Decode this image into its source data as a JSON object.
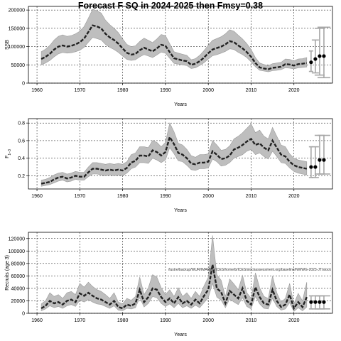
{
  "title": "Forecast F SQ in 2024-2025 then Fmsy=0.38",
  "colors": {
    "band": "#bebebe",
    "band_edge": "#9a9a9a",
    "line": "#222222",
    "forecast_bar": "#a6a6a6",
    "point": "#000000",
    "grid": "#000000"
  },
  "chart_data": [
    {
      "type": "line",
      "panel": "ssb",
      "ylabel": "SSB",
      "xlabel": "Years",
      "xlim": [
        1958,
        2029
      ],
      "ylim": [
        0,
        210000
      ],
      "xticks": [
        1960,
        1970,
        1980,
        1990,
        2000,
        2010,
        2020
      ],
      "yticks": [
        0,
        50000,
        100000,
        150000,
        200000
      ],
      "grid": true,
      "x": [
        1961,
        1962,
        1963,
        1964,
        1965,
        1966,
        1967,
        1968,
        1969,
        1970,
        1971,
        1972,
        1973,
        1974,
        1975,
        1976,
        1977,
        1978,
        1979,
        1980,
        1981,
        1982,
        1983,
        1984,
        1985,
        1986,
        1987,
        1988,
        1989,
        1990,
        1991,
        1992,
        1993,
        1994,
        1995,
        1996,
        1997,
        1998,
        1999,
        2000,
        2001,
        2002,
        2003,
        2004,
        2005,
        2006,
        2007,
        2008,
        2009,
        2010,
        2011,
        2012,
        2013,
        2014,
        2015,
        2016,
        2017,
        2018,
        2019,
        2020,
        2021,
        2022,
        2023
      ],
      "series": [
        {
          "values": [
            66000,
            72000,
            80000,
            92000,
            100000,
            103000,
            100000,
            102000,
            106000,
            112000,
            122000,
            140000,
            158000,
            155000,
            150000,
            135000,
            125000,
            118000,
            108000,
            95000,
            83000,
            78000,
            80000,
            90000,
            97000,
            92000,
            87000,
            95000,
            105000,
            102000,
            85000,
            68000,
            65000,
            62000,
            60000,
            50000,
            53000,
            60000,
            70000,
            82000,
            92000,
            96000,
            100000,
            106000,
            115000,
            112000,
            103000,
            95000,
            85000,
            72000,
            55000,
            43000,
            40000,
            38000,
            42000,
            43000,
            45000,
            52000,
            51000,
            48000,
            52000,
            53000,
            55000
          ],
          "lower": [
            50000,
            55000,
            62000,
            72000,
            80000,
            84000,
            82000,
            83000,
            86000,
            90000,
            98000,
            112000,
            125000,
            122000,
            118000,
            106000,
            98000,
            92000,
            84000,
            74000,
            65000,
            62000,
            64000,
            72000,
            78000,
            74000,
            70000,
            77000,
            85000,
            82000,
            68000,
            54000,
            52000,
            50000,
            48000,
            40000,
            42000,
            48000,
            56000,
            66000,
            75000,
            78000,
            82000,
            87000,
            94000,
            92000,
            84000,
            78000,
            70000,
            58000,
            45000,
            35000,
            33000,
            31000,
            34000,
            35000,
            37000,
            42000,
            41000,
            39000,
            42000,
            43000,
            44000
          ],
          "upper": [
            86000,
            93000,
            103000,
            118000,
            128000,
            132000,
            128000,
            130000,
            135000,
            142000,
            155000,
            178000,
            202000,
            198000,
            192000,
            172000,
            160000,
            150000,
            138000,
            121000,
            106000,
            100000,
            102000,
            114000,
            123000,
            117000,
            111000,
            121000,
            133000,
            130000,
            108000,
            86000,
            82000,
            79000,
            76000,
            64000,
            67000,
            76000,
            89000,
            104000,
            117000,
            122000,
            127000,
            135000,
            146000,
            142000,
            131000,
            121000,
            108000,
            92000,
            70000,
            55000,
            51000,
            48000,
            53000,
            55000,
            57000,
            66000,
            65000,
            61000,
            66000,
            67000,
            70000
          ]
        }
      ],
      "forecast": [
        {
          "year": 2024,
          "value": 57000,
          "lower": 32000,
          "upper": 88000
        },
        {
          "year": 2025,
          "value": 66000,
          "lower": 28000,
          "upper": 118000
        },
        {
          "year": 2026,
          "value": 74000,
          "lower": 22000,
          "upper": 150000
        },
        {
          "year": 2027,
          "value": 74000,
          "lower": 15000,
          "upper": 153000
        }
      ]
    },
    {
      "type": "line",
      "panel": "f",
      "ylabel": "F",
      "ylabel_subscript": "1−3",
      "xlabel": "Years",
      "xlim": [
        1958,
        2029
      ],
      "ylim": [
        0.05,
        0.85
      ],
      "xticks": [
        1960,
        1970,
        1980,
        1990,
        2000,
        2010,
        2020
      ],
      "yticks": [
        0.2,
        0.4,
        0.6,
        0.8
      ],
      "ytick_labels": [
        "0.2",
        "0.4",
        "0.6",
        "0.8"
      ],
      "grid": true,
      "x": [
        1961,
        1962,
        1963,
        1964,
        1965,
        1966,
        1967,
        1968,
        1969,
        1970,
        1971,
        1972,
        1973,
        1974,
        1975,
        1976,
        1977,
        1978,
        1979,
        1980,
        1981,
        1982,
        1983,
        1984,
        1985,
        1986,
        1987,
        1988,
        1989,
        1990,
        1991,
        1992,
        1993,
        1994,
        1995,
        1996,
        1997,
        1998,
        1999,
        2000,
        2001,
        2002,
        2003,
        2004,
        2005,
        2006,
        2007,
        2008,
        2009,
        2010,
        2011,
        2012,
        2013,
        2014,
        2015,
        2016,
        2017,
        2018,
        2019,
        2020,
        2021,
        2022,
        2023
      ],
      "series": [
        {
          "values": [
            0.11,
            0.12,
            0.13,
            0.16,
            0.18,
            0.19,
            0.17,
            0.18,
            0.2,
            0.19,
            0.19,
            0.24,
            0.28,
            0.28,
            0.27,
            0.26,
            0.27,
            0.26,
            0.27,
            0.26,
            0.29,
            0.35,
            0.37,
            0.43,
            0.43,
            0.42,
            0.49,
            0.47,
            0.43,
            0.47,
            0.64,
            0.56,
            0.46,
            0.44,
            0.4,
            0.34,
            0.33,
            0.35,
            0.35,
            0.36,
            0.48,
            0.44,
            0.39,
            0.4,
            0.43,
            0.5,
            0.52,
            0.55,
            0.59,
            0.62,
            0.55,
            0.57,
            0.52,
            0.49,
            0.6,
            0.52,
            0.44,
            0.42,
            0.36,
            0.32,
            0.3,
            0.29,
            0.28
          ],
          "lower": [
            0.08,
            0.09,
            0.1,
            0.12,
            0.14,
            0.15,
            0.13,
            0.14,
            0.16,
            0.15,
            0.15,
            0.19,
            0.22,
            0.22,
            0.21,
            0.2,
            0.21,
            0.2,
            0.21,
            0.2,
            0.23,
            0.28,
            0.3,
            0.35,
            0.35,
            0.34,
            0.4,
            0.38,
            0.35,
            0.38,
            0.52,
            0.45,
            0.37,
            0.36,
            0.32,
            0.27,
            0.26,
            0.28,
            0.28,
            0.29,
            0.39,
            0.36,
            0.31,
            0.32,
            0.35,
            0.4,
            0.42,
            0.44,
            0.48,
            0.5,
            0.44,
            0.46,
            0.42,
            0.39,
            0.48,
            0.42,
            0.35,
            0.34,
            0.29,
            0.25,
            0.23,
            0.22,
            0.21
          ],
          "upper": [
            0.15,
            0.16,
            0.18,
            0.21,
            0.23,
            0.24,
            0.22,
            0.23,
            0.25,
            0.24,
            0.24,
            0.3,
            0.35,
            0.35,
            0.34,
            0.33,
            0.34,
            0.33,
            0.34,
            0.33,
            0.36,
            0.44,
            0.46,
            0.53,
            0.53,
            0.52,
            0.6,
            0.58,
            0.53,
            0.58,
            0.8,
            0.7,
            0.57,
            0.55,
            0.5,
            0.43,
            0.41,
            0.44,
            0.44,
            0.45,
            0.6,
            0.55,
            0.49,
            0.5,
            0.54,
            0.62,
            0.65,
            0.69,
            0.74,
            0.79,
            0.69,
            0.72,
            0.65,
            0.62,
            0.75,
            0.65,
            0.55,
            0.53,
            0.45,
            0.4,
            0.38,
            0.37,
            0.36
          ]
        }
      ],
      "forecast": [
        {
          "year": 2024,
          "value": 0.3,
          "lower": 0.18,
          "upper": 0.53
        },
        {
          "year": 2025,
          "value": 0.3,
          "lower": 0.18,
          "upper": 0.53
        },
        {
          "year": 2026,
          "value": 0.38,
          "lower": 0.22,
          "upper": 0.66
        },
        {
          "year": 2027,
          "value": 0.38,
          "lower": 0.22,
          "upper": 0.66
        }
      ]
    },
    {
      "type": "line",
      "panel": "recruits",
      "ylabel": "Recruits (age 3)",
      "xlabel": "Years",
      "xlim": [
        1958,
        2029
      ],
      "ylim": [
        0,
        130000
      ],
      "xticks": [
        1960,
        1970,
        1980,
        1990,
        2000,
        2010,
        2020
      ],
      "yticks": [
        0,
        20000,
        40000,
        60000,
        80000,
        100000,
        120000
      ],
      "grid": true,
      "annotation": "/lustre/backup/WUR/IMARES/ICES/home/b/ICES/stockassessment.org/baseline/NWWG-2023-JT/stock",
      "x": [
        1961,
        1962,
        1963,
        1964,
        1965,
        1966,
        1967,
        1968,
        1969,
        1970,
        1971,
        1972,
        1973,
        1974,
        1975,
        1976,
        1977,
        1978,
        1979,
        1980,
        1981,
        1982,
        1983,
        1984,
        1985,
        1986,
        1987,
        1988,
        1989,
        1990,
        1991,
        1992,
        1993,
        1994,
        1995,
        1996,
        1997,
        1998,
        1999,
        2000,
        2001,
        2002,
        2003,
        2004,
        2005,
        2006,
        2007,
        2008,
        2009,
        2010,
        2011,
        2012,
        2013,
        2014,
        2015,
        2016,
        2017,
        2018,
        2019,
        2020,
        2021,
        2022,
        2023
      ],
      "series": [
        {
          "values": [
            8000,
            12000,
            20000,
            16000,
            18000,
            14000,
            20000,
            22000,
            18000,
            32000,
            28000,
            33000,
            28000,
            24000,
            22000,
            18000,
            14000,
            20000,
            10000,
            8000,
            14000,
            12000,
            16000,
            38000,
            18000,
            26000,
            40000,
            38000,
            26000,
            18000,
            24000,
            16000,
            26000,
            16000,
            20000,
            14000,
            22000,
            16000,
            28000,
            38000,
            78000,
            40000,
            34000,
            16000,
            36000,
            30000,
            24000,
            40000,
            20000,
            14000,
            42000,
            26000,
            16000,
            14000,
            38000,
            20000,
            10000,
            14000,
            30000,
            8000,
            18000,
            10000,
            26000
          ],
          "lower": [
            4000,
            7000,
            12000,
            9000,
            11000,
            8000,
            12000,
            14000,
            11000,
            21000,
            18000,
            22000,
            18000,
            15000,
            14000,
            11000,
            8000,
            12000,
            5000,
            4000,
            8000,
            7000,
            9000,
            25000,
            10000,
            16000,
            27000,
            25000,
            16000,
            11000,
            15000,
            9000,
            16000,
            9000,
            12000,
            8000,
            13000,
            9000,
            17000,
            25000,
            48000,
            26000,
            21000,
            9000,
            23000,
            18000,
            14000,
            25000,
            11000,
            7000,
            27000,
            15000,
            8000,
            7000,
            24000,
            11000,
            5000,
            7000,
            17000,
            3000,
            9000,
            4000,
            10000
          ],
          "upper": [
            15000,
            20000,
            33000,
            27000,
            30000,
            24000,
            33000,
            35000,
            30000,
            48000,
            42000,
            50000,
            43000,
            38000,
            35000,
            30000,
            24000,
            33000,
            18000,
            15000,
            24000,
            21000,
            27000,
            58000,
            30000,
            41000,
            62000,
            58000,
            41000,
            30000,
            38000,
            27000,
            41000,
            27000,
            33000,
            24000,
            35000,
            27000,
            44000,
            58000,
            125000,
            62000,
            53000,
            27000,
            55000,
            47000,
            38000,
            61000,
            33000,
            24000,
            65000,
            41000,
            27000,
            24000,
            60000,
            33000,
            18000,
            24000,
            48000,
            15000,
            32000,
            20000,
            50000
          ]
        }
      ],
      "forecast": [
        {
          "year": 2024,
          "value": 18000,
          "lower": 7000,
          "upper": 28000
        },
        {
          "year": 2025,
          "value": 18000,
          "lower": 7000,
          "upper": 28000
        },
        {
          "year": 2026,
          "value": 18000,
          "lower": 7000,
          "upper": 28000
        },
        {
          "year": 2027,
          "value": 18000,
          "lower": 7000,
          "upper": 28000
        }
      ]
    }
  ]
}
